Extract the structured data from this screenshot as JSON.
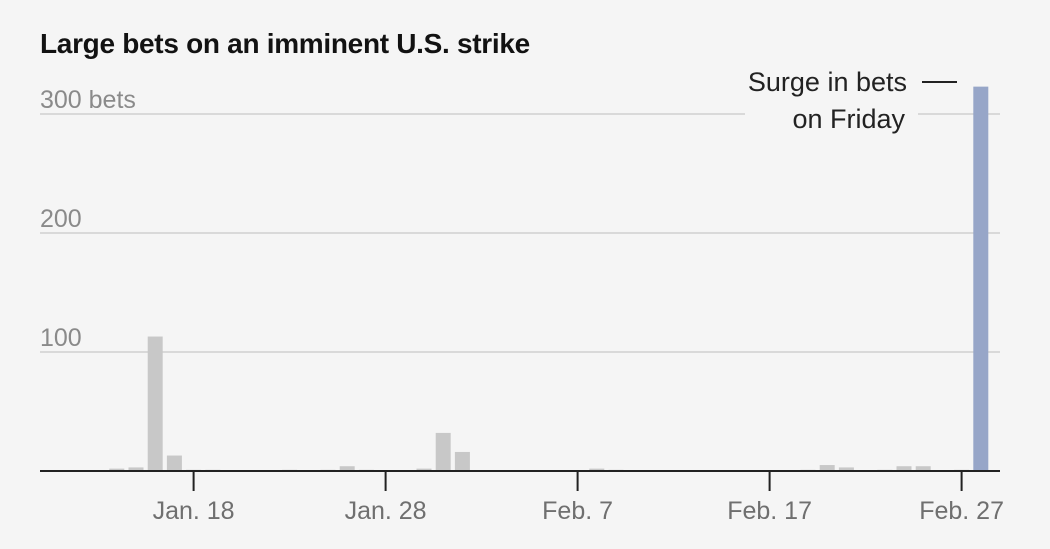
{
  "chart_data": {
    "type": "bar",
    "title": "Large bets on an imminent U.S. strike",
    "ylim": [
      0,
      300
    ],
    "yticks": [
      {
        "value": 100,
        "label": "100"
      },
      {
        "value": 200,
        "label": "200"
      },
      {
        "value": 300,
        "label": "300 bets"
      }
    ],
    "xticks": [
      {
        "index": 5,
        "label": "Jan. 18"
      },
      {
        "index": 15,
        "label": "Jan. 28"
      },
      {
        "index": 25,
        "label": "Feb. 7"
      },
      {
        "index": 35,
        "label": "Feb. 17"
      },
      {
        "index": 45,
        "label": "Feb. 27"
      }
    ],
    "values": [
      0,
      2,
      3,
      113,
      13,
      1,
      1,
      0,
      0,
      0,
      1,
      0,
      1,
      4,
      1,
      0,
      0,
      2,
      32,
      16,
      0,
      0,
      0,
      0,
      0,
      0,
      2,
      1,
      0,
      0,
      0,
      0,
      0,
      0,
      0,
      0,
      0,
      1,
      5,
      3,
      0,
      1,
      4,
      4,
      0,
      1,
      323
    ],
    "highlight_index": 46,
    "colors": {
      "bar": "#c8c8c8",
      "highlight": "#97a6c8",
      "grid": "#d9d9d9",
      "axis": "#222222"
    },
    "annotation": {
      "line1": "Surge in bets",
      "line2": "on Friday"
    },
    "grid": true
  }
}
